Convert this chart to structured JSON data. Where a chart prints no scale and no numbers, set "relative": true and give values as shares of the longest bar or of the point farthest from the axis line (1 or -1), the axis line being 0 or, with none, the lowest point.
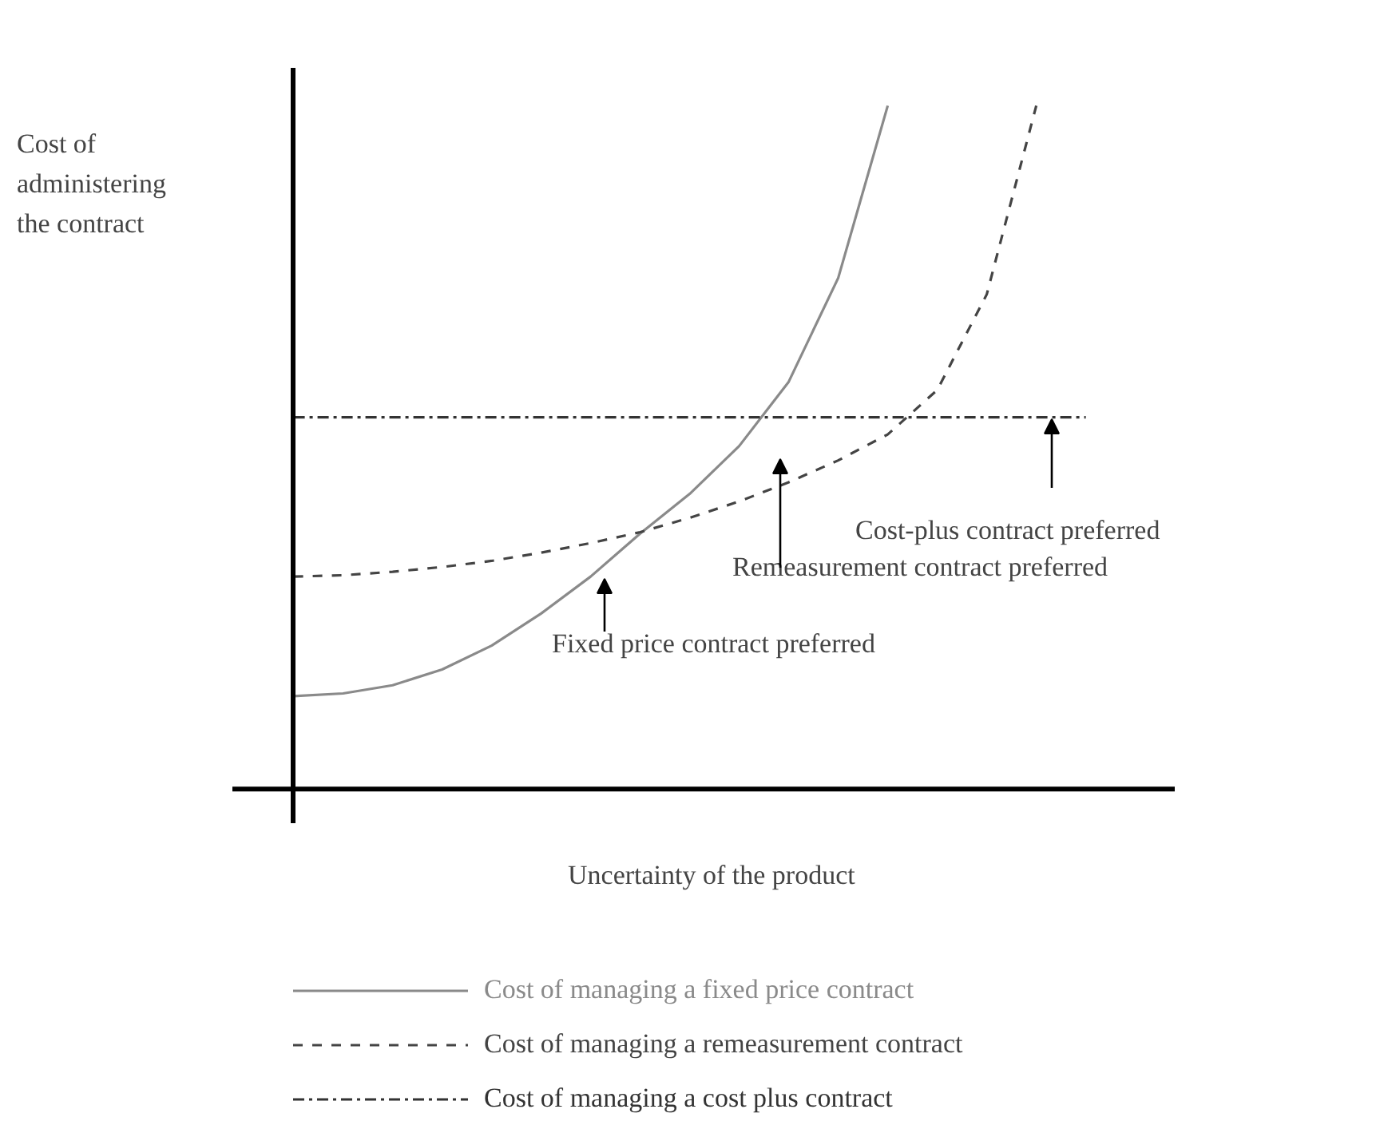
{
  "chart_data": {
    "type": "line",
    "relative": true,
    "xlabel": "Uncertainty of the product",
    "ylabel": "Cost of administering the contract",
    "categories": [
      null,
      null,
      null,
      null,
      null,
      null,
      null,
      null,
      null,
      null,
      null,
      null,
      null,
      null,
      null,
      null,
      null
    ],
    "series": [
      {
        "name": "Cost of managing a fixed price contract",
        "color": "#8a8a8a",
        "line_style": "solid",
        "values": [
          0.136,
          0.14,
          0.152,
          0.175,
          0.21,
          0.257,
          0.311,
          0.374,
          0.432,
          0.502,
          0.596,
          0.748,
          1,
          null,
          null,
          null,
          null
        ]
      },
      {
        "name": "Cost of managing a remeasurement contract",
        "color": "#444444",
        "line_style": "dashed",
        "values": [
          0.311,
          0.313,
          0.318,
          0.325,
          0.334,
          0.346,
          0.36,
          0.376,
          0.397,
          0.421,
          0.449,
          0.481,
          0.519,
          0.584,
          0.724,
          1,
          null
        ]
      },
      {
        "name": "Cost of managing a cost plus contract",
        "color": "#333333",
        "line_style": "dashdot",
        "values": [
          0.544,
          0.544,
          0.544,
          0.544,
          0.544,
          0.544,
          0.544,
          0.544,
          0.544,
          0.544,
          0.544,
          0.544,
          0.544,
          0.544,
          0.544,
          0.544,
          0.544
        ]
      }
    ],
    "annotations": [
      "Cost-plus contract preferred",
      "Remeasurement contract preferred",
      "Fixed price contract preferred"
    ],
    "legend": "bottom"
  }
}
